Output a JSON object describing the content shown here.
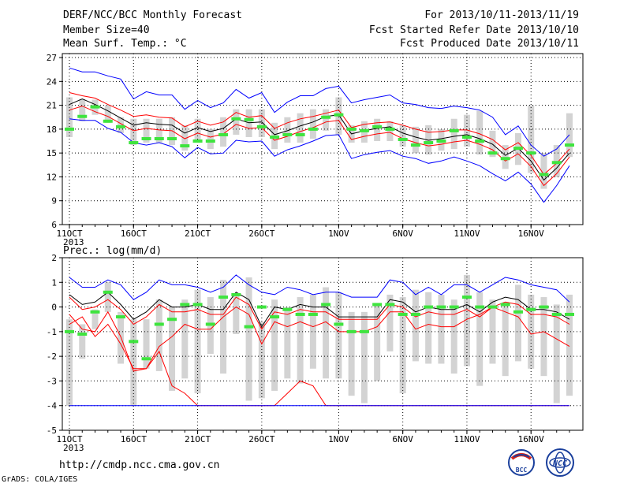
{
  "header": {
    "left": [
      "DERF/NCC/BCC Monthly Forecast",
      "Member Size=40",
      "Mean Surf. Temp.: °C"
    ],
    "right": [
      "For 2013/10/11-2013/11/19",
      "Fcst Started Refer Date 2013/10/10",
      "Fcst Produced Date 2013/10/11"
    ]
  },
  "footer": {
    "url": "http://cmdp.ncc.cma.gov.cn",
    "credit": "GrADS: COLA/IGES",
    "logo_left": "BCC",
    "logo_right": "NCC"
  },
  "colors": {
    "max_line": "#0000ff",
    "mean_line": "#000000",
    "spread_line": "#ff0000",
    "box": "#d3d3d3",
    "median_mark": "#3ee43e",
    "grid": "#000000"
  },
  "chart_data": [
    {
      "type": "line",
      "title": "Mean Surf. Temp.: °C",
      "ylim": [
        6,
        27.5
      ],
      "yticks": [
        6,
        9,
        12,
        15,
        18,
        21,
        24,
        27
      ],
      "x_tick_labels": [
        "11OCT\n2013",
        "16OCT",
        "21OCT",
        "26OCT",
        "1NOV",
        "6NOV",
        "11NOV",
        "16NOV"
      ],
      "x_tick_days": [
        1,
        6,
        11,
        16,
        22,
        27,
        32,
        37
      ],
      "days": 40,
      "grid": true,
      "series": [
        {
          "role": "max",
          "color": "#0000ff",
          "values": [
            25.7,
            25.2,
            25.2,
            24.7,
            24.3,
            21.8,
            22.7,
            22.3,
            22.3,
            20.5,
            21.6,
            20.7,
            21.3,
            23.0,
            21.9,
            22.6,
            20.1,
            21.4,
            22.2,
            22.2,
            23.1,
            23.4,
            21.3,
            21.7,
            22.0,
            22.3,
            21.3,
            21.1,
            20.7,
            20.6,
            20.9,
            20.7,
            20.4,
            19.5,
            17.3,
            18.4,
            16.0,
            14.6,
            15.5,
            17.3
          ]
        },
        {
          "role": "upper",
          "color": "#ff0000",
          "values": [
            22.6,
            22.2,
            21.9,
            21.1,
            20.4,
            19.6,
            19.8,
            19.5,
            19.4,
            18.3,
            19.0,
            18.5,
            18.9,
            20.1,
            19.5,
            19.7,
            18.1,
            18.8,
            19.3,
            19.6,
            20.0,
            20.4,
            18.2,
            18.6,
            18.8,
            18.9,
            18.5,
            18.0,
            17.6,
            17.7,
            17.9,
            17.9,
            17.4,
            16.7,
            15.4,
            16.3,
            14.7,
            12.3,
            13.7,
            15.5
          ]
        },
        {
          "role": "mean",
          "color": "#000000",
          "values": [
            21.1,
            21.8,
            21.1,
            20.3,
            19.4,
            18.5,
            18.8,
            18.6,
            18.5,
            17.5,
            18.2,
            17.7,
            18.1,
            19.3,
            18.8,
            18.9,
            17.3,
            17.8,
            18.4,
            18.9,
            19.6,
            19.8,
            17.4,
            17.8,
            18.1,
            18.3,
            17.5,
            17.0,
            16.6,
            16.8,
            17.1,
            17.3,
            16.8,
            16.1,
            14.7,
            15.6,
            14.0,
            11.6,
            13.1,
            15.0
          ]
        },
        {
          "role": "lower",
          "color": "#ff0000",
          "values": [
            20.4,
            20.9,
            20.2,
            19.6,
            18.7,
            17.8,
            18.1,
            17.9,
            17.8,
            16.8,
            17.5,
            17.0,
            17.4,
            18.6,
            18.1,
            18.2,
            16.6,
            17.1,
            17.7,
            18.2,
            18.9,
            19.1,
            16.7,
            17.1,
            17.4,
            17.6,
            16.8,
            16.3,
            15.9,
            16.1,
            16.4,
            16.6,
            16.1,
            15.4,
            14.0,
            14.9,
            13.3,
            10.9,
            12.4,
            14.5
          ]
        },
        {
          "role": "min",
          "color": "#0000ff",
          "values": [
            19.3,
            19.1,
            19.1,
            18.1,
            17.6,
            16.3,
            16.0,
            16.3,
            15.8,
            14.4,
            15.7,
            14.9,
            15.0,
            16.6,
            16.4,
            16.5,
            14.6,
            15.4,
            15.9,
            16.5,
            17.2,
            17.3,
            14.3,
            14.8,
            15.1,
            15.3,
            14.6,
            14.3,
            13.7,
            14.0,
            14.5,
            14.0,
            13.4,
            12.4,
            11.5,
            12.6,
            11.1,
            8.8,
            10.9,
            13.4
          ]
        }
      ],
      "boxes": {
        "low": [
          17.0,
          19.0,
          19.8,
          18.8,
          17.5,
          16.0,
          16.3,
          16.3,
          16.0,
          15.3,
          16.3,
          15.5,
          15.8,
          17.3,
          17.0,
          17.0,
          15.5,
          16.3,
          16.3,
          16.8,
          17.8,
          17.3,
          16.3,
          16.3,
          16.5,
          16.5,
          15.8,
          15.0,
          14.8,
          15.3,
          15.5,
          15.8,
          14.8,
          14.5,
          13.0,
          13.5,
          12.5,
          10.5,
          12.0,
          14.5
        ],
        "high": [
          22.0,
          21.8,
          21.7,
          21.0,
          19.5,
          19.3,
          19.3,
          19.3,
          19.5,
          18.5,
          19.3,
          18.0,
          19.5,
          20.5,
          20.5,
          20.5,
          18.8,
          19.5,
          20.0,
          20.5,
          20.5,
          22.0,
          18.5,
          19.0,
          19.3,
          19.0,
          18.5,
          18.3,
          18.5,
          18.0,
          19.3,
          19.8,
          20.3,
          17.8,
          16.0,
          17.5,
          21.0,
          15.0,
          16.0,
          20.0
        ],
        "median": [
          18.0,
          19.6,
          20.8,
          19.0,
          18.3,
          16.3,
          16.8,
          16.8,
          16.8,
          15.9,
          16.5,
          16.5,
          17.3,
          19.3,
          19.2,
          18.3,
          17.0,
          17.3,
          17.3,
          18.0,
          19.5,
          19.8,
          18.0,
          17.8,
          18.3,
          18.0,
          16.7,
          16.0,
          16.3,
          16.5,
          17.8,
          17.0,
          16.5,
          15.0,
          14.3,
          15.6,
          15.0,
          12.3,
          13.8,
          16.0
        ]
      }
    },
    {
      "type": "line",
      "title": "Prec.: log(mm/d)",
      "ylim": [
        -5,
        2
      ],
      "yticks": [
        -5,
        -4,
        -3,
        -2,
        -1,
        0,
        1,
        2
      ],
      "x_tick_labels": [
        "11OCT\n2013",
        "16OCT",
        "21OCT",
        "26OCT",
        "1NOV",
        "6NOV",
        "11NOV",
        "16NOV"
      ],
      "x_tick_days": [
        1,
        6,
        11,
        16,
        22,
        27,
        32,
        37
      ],
      "days": 40,
      "grid": true,
      "series": [
        {
          "role": "max",
          "color": "#0000ff",
          "values": [
            1.2,
            0.8,
            0.8,
            1.1,
            0.9,
            0.3,
            0.6,
            1.1,
            0.9,
            0.9,
            0.8,
            0.6,
            0.8,
            1.3,
            0.9,
            0.6,
            0.5,
            0.8,
            0.7,
            0.5,
            0.6,
            0.6,
            0.4,
            0.4,
            0.4,
            1.1,
            1.0,
            0.5,
            0.8,
            0.5,
            0.9,
            0.9,
            0.6,
            0.9,
            1.2,
            1.1,
            0.9,
            0.8,
            0.7,
            0.2
          ]
        },
        {
          "role": "mean",
          "color": "#000000",
          "values": [
            0.5,
            0.1,
            0.2,
            0.6,
            0.1,
            -0.5,
            -0.2,
            0.3,
            0.0,
            0.0,
            0.1,
            -0.1,
            -0.1,
            0.6,
            0.3,
            -0.8,
            0.0,
            -0.1,
            0.1,
            0.0,
            0.0,
            -0.4,
            -0.4,
            -0.4,
            -0.4,
            0.3,
            0.2,
            -0.2,
            0.0,
            -0.1,
            -0.1,
            0.1,
            -0.2,
            0.2,
            0.4,
            0.3,
            -0.1,
            -0.1,
            -0.2,
            -0.5
          ]
        },
        {
          "role": "upper",
          "color": "#ff0000",
          "values": [
            0.4,
            -0.1,
            0.0,
            0.3,
            -0.1,
            -0.7,
            -0.4,
            0.1,
            -0.2,
            -0.2,
            -0.1,
            -0.3,
            -0.3,
            0.4,
            0.1,
            -0.9,
            -0.2,
            -0.3,
            -0.1,
            -0.2,
            -0.2,
            -0.5,
            -0.5,
            -0.5,
            -0.5,
            0.1,
            0.0,
            -0.4,
            -0.2,
            -0.3,
            -0.3,
            -0.1,
            -0.4,
            0.0,
            0.2,
            0.1,
            -0.3,
            -0.3,
            -0.4,
            -0.7
          ]
        },
        {
          "role": "lower",
          "color": "#ff0000",
          "values": [
            -0.3,
            -0.9,
            -1.0,
            -0.2,
            -1.2,
            -2.6,
            -2.5,
            -1.8,
            -3.2,
            -3.5,
            -4.0,
            -4.0,
            -4.0,
            -4.0,
            -4.0,
            -4.0,
            -4.0,
            -3.5,
            -3.0,
            -3.2,
            -4.0,
            -4.0,
            -4.0,
            -4.0,
            -4.0,
            -4.0,
            -4.0,
            -4.0,
            -4.0,
            -4.0,
            -4.0,
            -4.0,
            -4.0,
            -4.0,
            -4.0,
            -4.0,
            -4.0,
            -4.0,
            -4.0,
            -4.0
          ]
        },
        {
          "role": "low_red",
          "color": "#ff0000",
          "values": [
            -0.7,
            -0.4,
            -1.2,
            -0.7,
            -1.5,
            -2.5,
            -2.5,
            -1.6,
            -1.2,
            -0.7,
            -0.9,
            -0.9,
            -0.4,
            0.0,
            -0.3,
            -1.5,
            -0.6,
            -0.8,
            -0.6,
            -0.8,
            -0.6,
            -1.0,
            -1.0,
            -1.0,
            -0.8,
            -0.2,
            -0.2,
            -0.9,
            -0.7,
            -0.8,
            -0.8,
            -0.5,
            -0.3,
            0.0,
            -0.2,
            -0.4,
            -1.1,
            -1.0,
            -1.3,
            -1.6
          ]
        },
        {
          "role": "min",
          "color": "#0000ff",
          "values": [
            -4.0,
            -4.0,
            -4.0,
            -4.0,
            -4.0,
            -4.0,
            -4.0,
            -4.0,
            -4.0,
            -4.0,
            -4.0,
            -4.0,
            -4.0,
            -4.0,
            -4.0,
            -4.0,
            -4.0,
            -4.0,
            -4.0,
            -4.0,
            -4.0,
            -4.0,
            -4.0,
            -4.0,
            -4.0,
            -4.0,
            -4.0,
            -4.0,
            -4.0,
            -4.0,
            -4.0,
            -4.0,
            -4.0,
            -4.0,
            -4.0,
            -4.0,
            -4.0,
            -4.0,
            -4.0,
            -4.0
          ]
        }
      ],
      "boxes": {
        "low": [
          -4.0,
          -2.1,
          -0.9,
          -0.2,
          -2.3,
          -4.0,
          -2.5,
          -2.6,
          -3.4,
          -2.9,
          -3.5,
          -1.9,
          -2.7,
          -1.1,
          -3.8,
          -3.7,
          -3.4,
          -2.9,
          -3.1,
          -2.5,
          -2.9,
          -2.9,
          -3.6,
          -3.9,
          -3.0,
          -1.8,
          -3.5,
          -2.2,
          -2.3,
          -2.3,
          -2.7,
          -2.4,
          -3.2,
          -2.3,
          -2.8,
          -2.2,
          -2.5,
          -2.8,
          -3.9,
          -3.6
        ],
        "high": [
          -0.5,
          -0.7,
          -0.1,
          1.0,
          -0.2,
          -0.5,
          -0.5,
          0.3,
          0.0,
          0.3,
          0.7,
          0.4,
          1.1,
          0.5,
          1.2,
          -0.6,
          0.3,
          0.0,
          0.4,
          0.5,
          0.8,
          0.6,
          -0.2,
          -0.2,
          0.1,
          0.5,
          0.4,
          0.7,
          0.6,
          0.5,
          0.3,
          1.3,
          0.6,
          0.3,
          0.2,
          0.9,
          0.5,
          0.4,
          0.1,
          0.5
        ],
        "median": [
          -1.0,
          -1.1,
          -0.2,
          0.6,
          -0.4,
          -1.4,
          -2.1,
          -0.7,
          -0.5,
          0.1,
          0.1,
          -0.7,
          0.4,
          0.5,
          -0.8,
          0.0,
          -0.4,
          -0.1,
          -0.3,
          -0.3,
          0.1,
          -0.7,
          -1.0,
          -1.0,
          0.1,
          0.1,
          -0.3,
          -0.3,
          0.0,
          0.0,
          0.0,
          0.4,
          0.0,
          0.0,
          0.1,
          -0.2,
          -0.1,
          0.0,
          -0.3,
          -0.3
        ]
      }
    }
  ]
}
